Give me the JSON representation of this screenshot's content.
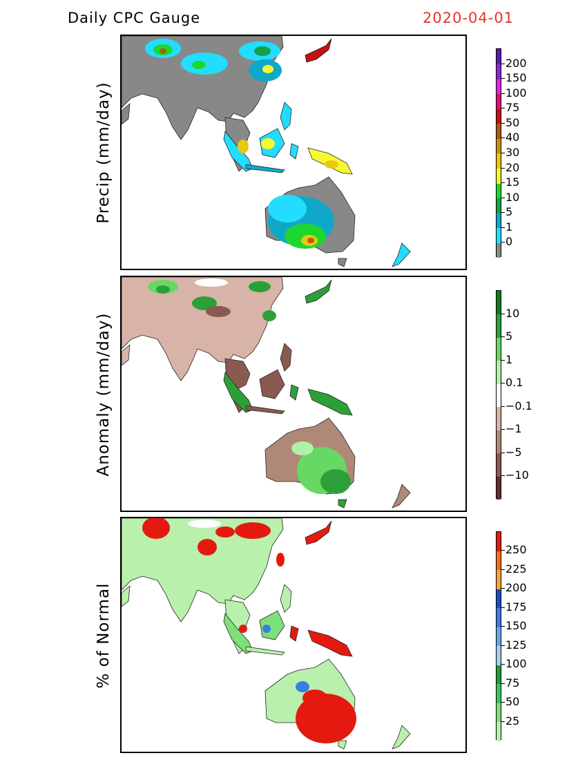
{
  "header": {
    "title": "Daily CPC Gauge",
    "date": "2020-04-01"
  },
  "panels": [
    {
      "id": "precip",
      "ylabel": "Precip (mm/day)",
      "colorbar": {
        "colors": [
          "#888888",
          "#22ddff",
          "#10a8c8",
          "#12a24a",
          "#1cd82c",
          "#f8f830",
          "#e8c810",
          "#c89010",
          "#b05a10",
          "#c41010",
          "#e0106c",
          "#d828e0",
          "#8c28d0",
          "#5a1ca8"
        ],
        "labels": [
          "0",
          "1",
          "5",
          "10",
          "15",
          "20",
          "30",
          "40",
          "50",
          "75",
          "100",
          "150",
          "200"
        ]
      }
    },
    {
      "id": "anomaly",
      "ylabel": "Anomaly (mm/day)",
      "colorbar": {
        "colors": [
          "#5e3028",
          "#8a5a50",
          "#b08878",
          "#d8b4a8",
          "#ffffff",
          "#b2f0a8",
          "#68d864",
          "#2ca038",
          "#0e7a1c"
        ],
        "labels": [
          "−10",
          "−5",
          "−1",
          "−0.1",
          "0.1",
          "1",
          "5",
          "10"
        ]
      }
    },
    {
      "id": "percent",
      "ylabel": "% of Normal",
      "colorbar": {
        "colors": [
          "#b8f0ac",
          "#7ee07a",
          "#3ec45a",
          "#1e9c36",
          "#a8ccf0",
          "#6aa4e8",
          "#3c7ce0",
          "#1a4cc4",
          "#f8a23c",
          "#f07018",
          "#e41a10"
        ],
        "labels": [
          "25",
          "50",
          "75",
          "100",
          "125",
          "150",
          "175",
          "200",
          "225",
          "250"
        ]
      }
    }
  ]
}
